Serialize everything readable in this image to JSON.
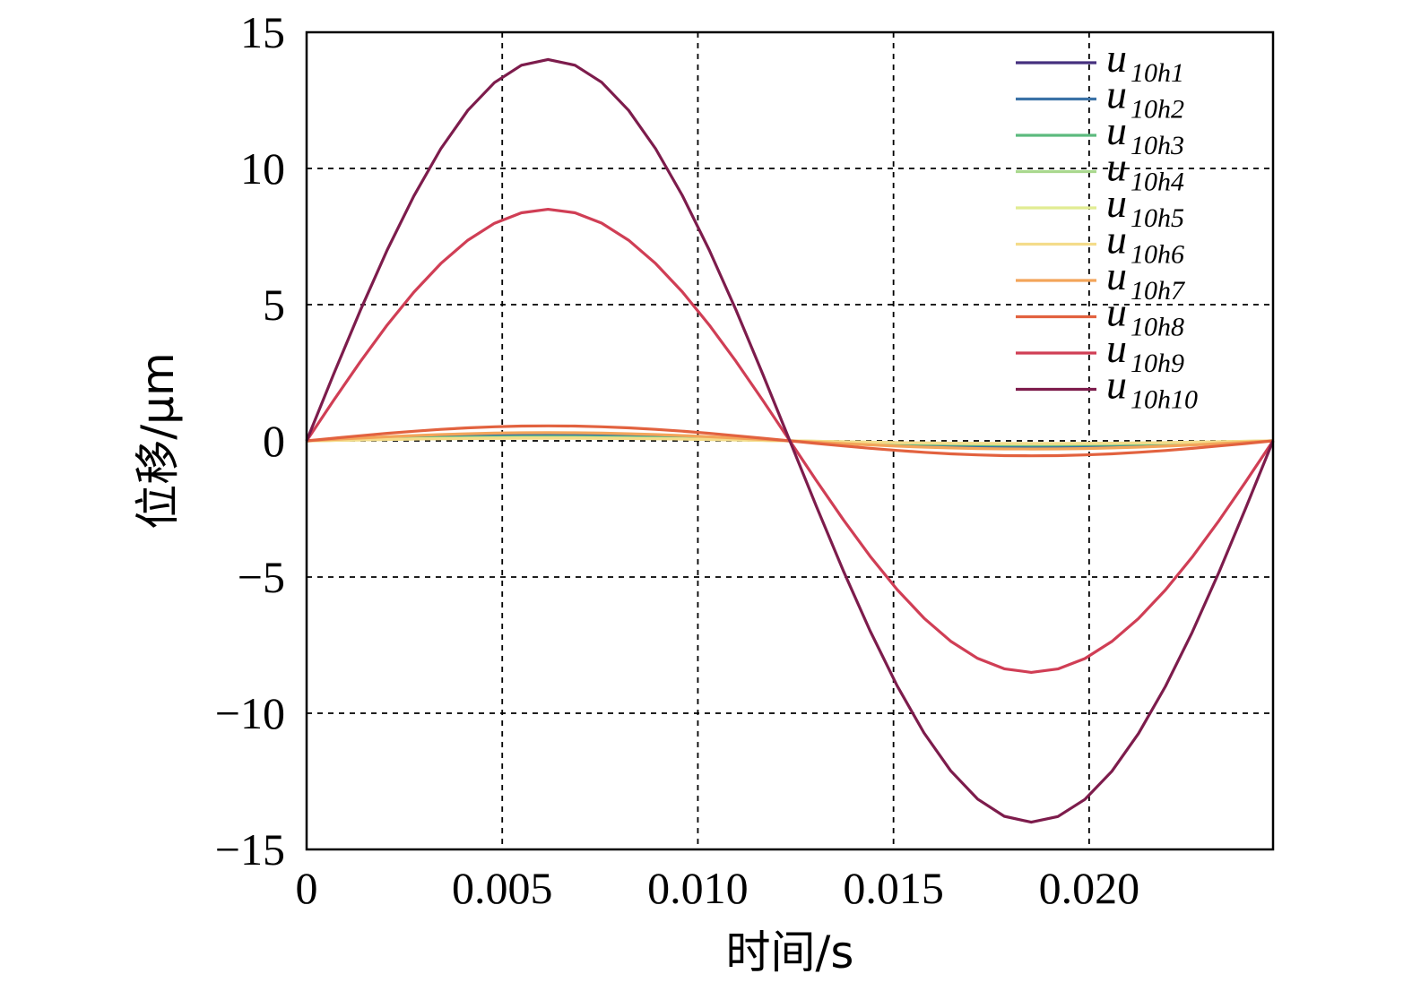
{
  "chart_data": {
    "type": "line",
    "title": "",
    "xlabel": "时间/s",
    "ylabel": "位移/μm",
    "xlim": [
      0,
      0.0247
    ],
    "ylim": [
      -15,
      15
    ],
    "xticks": [
      0,
      0.005,
      0.01,
      0.015,
      0.02
    ],
    "xtick_labels": [
      "0",
      "0.005",
      "0.010",
      "0.015",
      "0.020"
    ],
    "yticks": [
      15,
      10,
      5,
      0,
      -5,
      -10,
      -15
    ],
    "ytick_labels": [
      "15",
      "10",
      "5",
      "0",
      "−5",
      "−10",
      "−15"
    ],
    "grid": true,
    "grid_style": "dashed",
    "legend_position": "top-right",
    "x": [
      0,
      0.00069,
      0.00137,
      0.00206,
      0.00274,
      0.00343,
      0.00412,
      0.0048,
      0.00549,
      0.00617,
      0.00686,
      0.00754,
      0.00823,
      0.00892,
      0.0096,
      0.01029,
      0.01097,
      0.01166,
      0.01235,
      0.01303,
      0.01372,
      0.0144,
      0.01509,
      0.01578,
      0.01646,
      0.01715,
      0.01783,
      0.01852,
      0.0192,
      0.01989,
      0.02058,
      0.02126,
      0.02195,
      0.02263,
      0.02332,
      0.024,
      0.0247
    ],
    "series": [
      {
        "name_base": "u",
        "name_sub": "10h1",
        "color": "#46307f",
        "amplitude": 0.2
      },
      {
        "name_base": "u",
        "name_sub": "10h2",
        "color": "#3b72a6",
        "amplitude": 0.25
      },
      {
        "name_base": "u",
        "name_sub": "10h3",
        "color": "#5cba7e",
        "amplitude": 0.15
      },
      {
        "name_base": "u",
        "name_sub": "10h4",
        "color": "#a9d88e",
        "amplitude": 0.12
      },
      {
        "name_base": "u",
        "name_sub": "10h5",
        "color": "#e1ec92",
        "amplitude": 0.1
      },
      {
        "name_base": "u",
        "name_sub": "10h6",
        "color": "#f4dc8a",
        "amplitude": 0.1
      },
      {
        "name_base": "u",
        "name_sub": "10h7",
        "color": "#f3a55a",
        "amplitude": 0.3
      },
      {
        "name_base": "u",
        "name_sub": "10h8",
        "color": "#e2623f",
        "amplitude": 0.55
      },
      {
        "name_base": "u",
        "name_sub": "10h9",
        "color": "#d03e55",
        "amplitude": 8.5
      },
      {
        "name_base": "u",
        "name_sub": "10h10",
        "color": "#7d1c4c",
        "amplitude": 14.0
      }
    ]
  }
}
